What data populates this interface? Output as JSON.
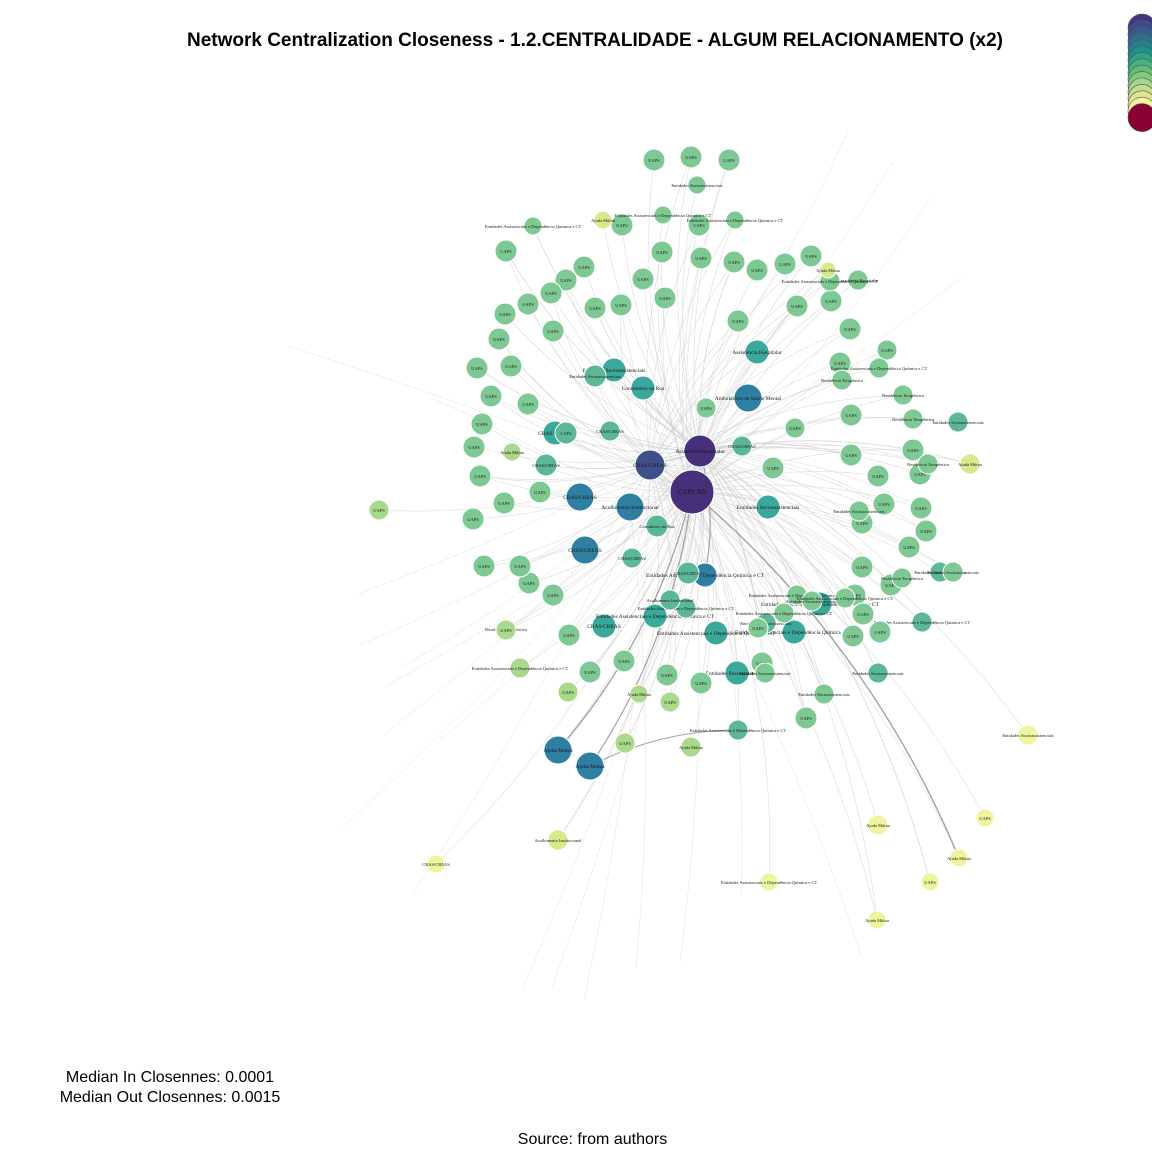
{
  "title": "Network Centralization Closeness - 1.2.CENTRALIDADE - ALGUM RELACIONAMENTO (x2)",
  "stats": {
    "median_in": "Median In Closennes: 0.0001",
    "median_out": "Median Out Closennes: 0.0015"
  },
  "source": "Source: from authors",
  "legend_colors": [
    "#46337e",
    "#3f4a8a",
    "#365c8d",
    "#2e6e8e",
    "#277f8e",
    "#21918c",
    "#2ca48a",
    "#4ab07d",
    "#65bd74",
    "#86c87c",
    "#a5d48a",
    "#c6dd8f",
    "#e0e792",
    "#f3f29e",
    "#8b0033"
  ],
  "colors": {
    "c1": "#46307a",
    "c2": "#3f4f8a",
    "c3": "#2f7fa3",
    "c4": "#3aa89a",
    "c5": "#5bb795",
    "c6": "#7ec894",
    "c7": "#a9d98a",
    "c8": "#d6ea8c",
    "c9": "#eef59d",
    "edge": "#cfcfcf",
    "edgeDark": "#9a9a9a"
  },
  "nodes": [
    {
      "label": "CAPS AD",
      "c": "c1"
    },
    {
      "label": "Assistência Hospitalar",
      "c": "c1"
    },
    {
      "label": "CRAS/CREAS",
      "c": "c2"
    },
    {
      "label": "Acolhimento Institucional",
      "c": "c3"
    },
    {
      "label": "CRAS/CREAS",
      "c": "c3"
    },
    {
      "label": "CRAS/CREAS",
      "c": "c3"
    },
    {
      "label": "Ambulatório de Saúde Mental",
      "c": "c3"
    },
    {
      "label": "Ajuda Mútua",
      "c": "c3"
    },
    {
      "label": "Ajuda Mútua",
      "c": "c3"
    },
    {
      "label": "Entidades Assistenciais e Dependência Química e CT",
      "c": "c3"
    },
    {
      "label": "Entidades Socioassistenciais",
      "c": "c4"
    },
    {
      "label": "Consultório na Rua",
      "c": "c4"
    },
    {
      "label": "Assistência Hospitalar",
      "c": "c4"
    },
    {
      "label": "Entidades Socioassistenciais",
      "c": "c4"
    },
    {
      "label": "Entidades Assistenciais e Dependência Química e CT",
      "c": "c4"
    },
    {
      "label": "CRAS/CREAS",
      "c": "c4"
    },
    {
      "label": "Entidades Assistenciais e Dependência Química e CT",
      "c": "c4"
    },
    {
      "label": "Entidades Assistenciais e Dependência Química e CT",
      "c": "c4"
    },
    {
      "label": "Entidades Socioassistenciais",
      "c": "c4"
    },
    {
      "label": "CRAS/CREAS",
      "c": "c4"
    },
    {
      "label": "Entidades Assistenciais e Dependência Química e CT",
      "c": "c4"
    },
    {
      "label": "CRAS/CREAS",
      "c": "c5"
    },
    {
      "label": "CAPS",
      "c": "c5"
    },
    {
      "label": "Consultório na Rua",
      "c": "c5"
    },
    {
      "label": "Entidades Socioassistenciais",
      "c": "c5"
    },
    {
      "label": "CRAS/CREAS",
      "c": "c5"
    },
    {
      "label": "CAPS",
      "c": "c5"
    },
    {
      "label": "Entidades Assistenciais e Dependência Química e CT",
      "c": "c5"
    },
    {
      "label": "Entidades Socioassistenciais",
      "c": "c5"
    },
    {
      "label": "CRAS/CREAS",
      "c": "c5"
    },
    {
      "label": "CRAS/CREAS",
      "c": "c5"
    },
    {
      "label": "Acolhimento Institucional",
      "c": "c5"
    },
    {
      "label": "Entidades Assistenciais e Dependência Química e CT",
      "c": "c5"
    },
    {
      "label": "CRAS/CREAS",
      "c": "c5"
    },
    {
      "label": "Entidades Socioassistenciais",
      "c": "c5"
    },
    {
      "label": "Entidades Socioassistenciais",
      "c": "c5"
    },
    {
      "label": "Entidades Assistenciais e Dependência Química e CT",
      "c": "c5"
    },
    {
      "label": "Entidades Socioassistenciais",
      "c": "c5"
    },
    {
      "label": "UAPS",
      "c": "c6"
    },
    {
      "label": "UAPS",
      "c": "c6"
    },
    {
      "label": "UAPS",
      "c": "c6"
    },
    {
      "label": "UAPS",
      "c": "c6"
    },
    {
      "label": "UAPS",
      "c": "c6"
    },
    {
      "label": "UAPS",
      "c": "c6"
    },
    {
      "label": "UAPS",
      "c": "c6"
    },
    {
      "label": "UAPS",
      "c": "c6"
    },
    {
      "label": "UAPS",
      "c": "c6"
    },
    {
      "label": "UAPS",
      "c": "c6"
    },
    {
      "label": "UAPS",
      "c": "c6"
    },
    {
      "label": "UAPS",
      "c": "c6"
    },
    {
      "label": "UAPS",
      "c": "c6"
    },
    {
      "label": "UAPS",
      "c": "c6"
    },
    {
      "label": "UAPS",
      "c": "c6"
    },
    {
      "label": "UAPS",
      "c": "c6"
    },
    {
      "label": "UAPS",
      "c": "c6"
    },
    {
      "label": "UAPS",
      "c": "c6"
    },
    {
      "label": "UAPS",
      "c": "c6"
    },
    {
      "label": "UAPS",
      "c": "c6"
    },
    {
      "label": "UAPS",
      "c": "c6"
    },
    {
      "label": "UAPS",
      "c": "c6"
    },
    {
      "label": "UAPS",
      "c": "c6"
    },
    {
      "label": "UAPS",
      "c": "c6"
    },
    {
      "label": "UAPS",
      "c": "c6"
    },
    {
      "label": "UAPS",
      "c": "c6"
    },
    {
      "label": "UAPS",
      "c": "c6"
    },
    {
      "label": "UAPS",
      "c": "c6"
    },
    {
      "label": "UAPS",
      "c": "c6"
    },
    {
      "label": "UAPS",
      "c": "c6"
    },
    {
      "label": "UAPS",
      "c": "c6"
    },
    {
      "label": "UAPS",
      "c": "c6"
    },
    {
      "label": "UAPS",
      "c": "c6"
    },
    {
      "label": "UAPS",
      "c": "c6"
    },
    {
      "label": "UAPS",
      "c": "c6"
    },
    {
      "label": "UAPS",
      "c": "c6"
    },
    {
      "label": "UAPS",
      "c": "c6"
    },
    {
      "label": "UAPS",
      "c": "c6"
    },
    {
      "label": "UAPS",
      "c": "c6"
    },
    {
      "label": "UAPS",
      "c": "c6"
    },
    {
      "label": "UAPS",
      "c": "c6"
    },
    {
      "label": "UAPS",
      "c": "c6"
    },
    {
      "label": "UAPS",
      "c": "c6"
    },
    {
      "label": "UAPS",
      "c": "c6"
    },
    {
      "label": "UAPS",
      "c": "c6"
    },
    {
      "label": "UAPS",
      "c": "c6"
    },
    {
      "label": "UAPS",
      "c": "c6"
    },
    {
      "label": "UAPS",
      "c": "c6"
    },
    {
      "label": "UAPS",
      "c": "c6"
    },
    {
      "label": "UAPS",
      "c": "c6"
    },
    {
      "label": "UAPS",
      "c": "c6"
    },
    {
      "label": "UAPS",
      "c": "c6"
    },
    {
      "label": "UAPS",
      "c": "c6"
    },
    {
      "label": "UAPS",
      "c": "c6"
    },
    {
      "label": "UAPS",
      "c": "c6"
    },
    {
      "label": "UAPS",
      "c": "c6"
    },
    {
      "label": "UAPS",
      "c": "c6"
    },
    {
      "label": "UAPS",
      "c": "c6"
    },
    {
      "label": "UAPS",
      "c": "c6"
    },
    {
      "label": "UAPS",
      "c": "c6"
    },
    {
      "label": "UAPS",
      "c": "c6"
    },
    {
      "label": "UAPS",
      "c": "c6"
    },
    {
      "label": "UAPS",
      "c": "c6"
    },
    {
      "label": "UAPS",
      "c": "c6"
    },
    {
      "label": "UAPS",
      "c": "c6"
    },
    {
      "label": "UAPS",
      "c": "c6"
    },
    {
      "label": "UAPS",
      "c": "c6"
    },
    {
      "label": "CAPS",
      "c": "c6"
    },
    {
      "label": "UAPS",
      "c": "c6"
    },
    {
      "label": "Entidades Assistenciais e Dependência Química e CT",
      "c": "c6"
    },
    {
      "label": "Residência Terapêutica",
      "c": "c6"
    },
    {
      "label": "Residência Terapêutica",
      "c": "c6"
    },
    {
      "label": "Residência Terapêutica",
      "c": "c6"
    },
    {
      "label": "Residência Terapêutica",
      "c": "c6"
    },
    {
      "label": "Entidades Socioassistenciais",
      "c": "c6"
    },
    {
      "label": "Residência Terapêutica",
      "c": "c6"
    },
    {
      "label": "Entidades Socioassistenciais",
      "c": "c6"
    },
    {
      "label": "Entidades Assistenciais e Dependência Química e CT",
      "c": "c6"
    },
    {
      "label": "Entidades Socioassistenciais",
      "c": "c6"
    },
    {
      "label": "Entidades Assistenciais e Dependência Química e CT",
      "c": "c6"
    },
    {
      "label": "Entidades Assistenciais e Dependência Química e CT",
      "c": "c6"
    },
    {
      "label": "UAPS",
      "c": "c6"
    },
    {
      "label": "Entidades Socioassistenciais",
      "c": "c6"
    },
    {
      "label": "Entidades Socioassistenciais",
      "c": "c6"
    },
    {
      "label": "Assistência Hospitalar",
      "c": "c6"
    },
    {
      "label": "Entidades Assistenciais e Dependência Química e CT",
      "c": "c6"
    },
    {
      "label": "Entidades Assistenciais e Dependência Química e CT",
      "c": "c6"
    },
    {
      "label": "Entidades Assistenciais e Dependência Química e CT",
      "c": "c6"
    },
    {
      "label": "Entidades Assistenciais e Dependência Química e CT",
      "c": "c6"
    },
    {
      "label": "Entidades Socioassistenciais",
      "c": "c6"
    },
    {
      "label": "UAPS",
      "c": "c7"
    },
    {
      "label": "UAPS",
      "c": "c7"
    },
    {
      "label": "UAPS",
      "c": "c7"
    },
    {
      "label": "Residência Terapêutica",
      "c": "c7"
    },
    {
      "label": "UAPS",
      "c": "c7"
    },
    {
      "label": "UAPS",
      "c": "c7"
    },
    {
      "label": "Entidades Assistenciais e Dependência Química e CT",
      "c": "c7"
    },
    {
      "label": "Ajuda Mútua",
      "c": "c7"
    },
    {
      "label": "Ajuda Mútua",
      "c": "c7"
    },
    {
      "label": "Ajuda Mútua",
      "c": "c7"
    },
    {
      "label": "Ajuda Mútua",
      "c": "c8"
    },
    {
      "label": "Ajuda Mútua",
      "c": "c8"
    },
    {
      "label": "Acolhimento Institucional",
      "c": "c8"
    },
    {
      "label": "Ajuda Mútua",
      "c": "c8"
    },
    {
      "label": "Ajuda Mútua",
      "c": "c9"
    },
    {
      "label": "CRAS/CREAS",
      "c": "c9"
    },
    {
      "label": "Ajuda Mútua",
      "c": "c9"
    },
    {
      "label": "UAPS",
      "c": "c9"
    },
    {
      "label": "UAPS",
      "c": "c9"
    },
    {
      "label": "Ajuda Mútua",
      "c": "c9"
    },
    {
      "label": "Entidades Assistenciais e Dependência Química e CT",
      "c": "c9"
    },
    {
      "label": "Entidades Socioassistenciais",
      "c": "c9"
    },
    {
      "label": "Ajuda Mútua",
      "c": "c9"
    },
    {
      "label": "Entidades Assistenciais e Dependência Química e CT",
      "c": "c9"
    },
    {
      "label": "Ajuda Mútua",
      "c": "c9"
    },
    {
      "label": "Entidades Assistenciais e Dependência Química e CT",
      "c": "c9"
    },
    {
      "label": "Ajuda Mútua",
      "c": "c9"
    },
    {
      "label": "Ajuda Mútua",
      "c": "c9"
    },
    {
      "label": "Ajuda Mútua",
      "c": "c9"
    },
    {
      "label": "Ajuda Mútua",
      "c": "c9"
    }
  ]
}
